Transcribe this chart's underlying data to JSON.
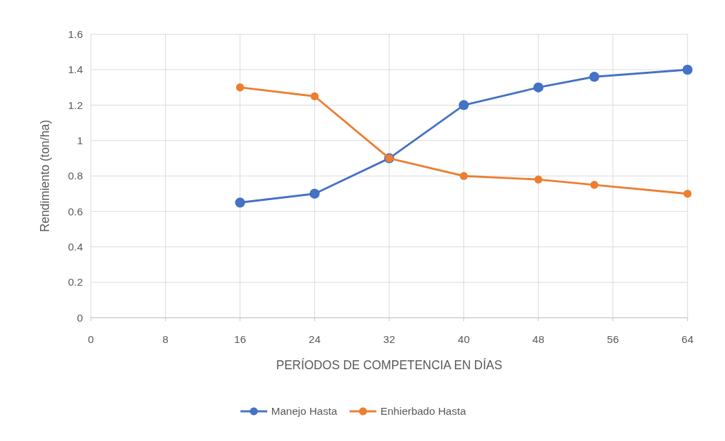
{
  "chart_data": {
    "type": "line",
    "xlabel": "PERÍODOS DE COMPETENCIA EN DÍAS",
    "ylabel": "Rendimiento (ton/ha)",
    "series": [
      {
        "name": "Manejo Hasta",
        "color": "#4472c4",
        "x": [
          16,
          24,
          32,
          40,
          48,
          54,
          64
        ],
        "values": [
          0.65,
          0.7,
          0.9,
          1.2,
          1.3,
          1.36,
          1.4
        ]
      },
      {
        "name": "Enhierbado Hasta",
        "color": "#ed7d31",
        "x": [
          16,
          24,
          32,
          40,
          48,
          54,
          64
        ],
        "values": [
          1.3,
          1.25,
          0.9,
          0.8,
          0.78,
          0.75,
          0.7
        ]
      }
    ],
    "xlim": [
      0,
      64
    ],
    "xticks": [
      0,
      8,
      16,
      24,
      32,
      40,
      48,
      56,
      64
    ],
    "ylim": [
      0,
      1.6
    ],
    "yticks": [
      {
        "value": 0,
        "label": "0"
      },
      {
        "value": 0.2,
        "label": "0.2"
      },
      {
        "value": 0.4,
        "label": "0.4"
      },
      {
        "value": 0.6,
        "label": "0.6"
      },
      {
        "value": 0.8,
        "label": "0.8"
      },
      {
        "value": 1,
        "label": "1"
      },
      {
        "value": 1.2,
        "label": "1.2"
      },
      {
        "value": 1.4,
        "label": "1.4"
      },
      {
        "value": 1.6,
        "label": "1.6"
      }
    ],
    "grid": true,
    "legend": "bottom",
    "marker": "circle",
    "line_style": "solid"
  }
}
